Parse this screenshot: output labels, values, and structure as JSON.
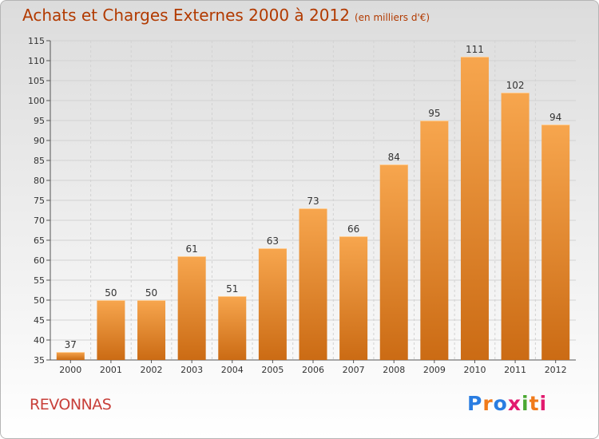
{
  "title": "Achats et Charges Externes 2000 à 2012",
  "unit": "(en milliers d'€)",
  "commune": "REVONNAS",
  "logo": "Proxiti",
  "colors": {
    "title": "#b23a00",
    "bar_light": "#f7a64e",
    "bar_dark": "#cb6b14",
    "commune": "#c8403a",
    "logo_letters": [
      "#2a7de1",
      "#f07a1a",
      "#2a7de1",
      "#e21a6e",
      "#4aa832",
      "#f07a1a",
      "#e21a6e"
    ]
  },
  "chart_data": {
    "type": "bar",
    "categories": [
      "2000",
      "2001",
      "2002",
      "2003",
      "2004",
      "2005",
      "2006",
      "2007",
      "2008",
      "2009",
      "2010",
      "2011",
      "2012"
    ],
    "values": [
      37,
      50,
      50,
      61,
      51,
      63,
      73,
      66,
      84,
      95,
      111,
      102,
      94
    ],
    "ylim": [
      35,
      115
    ],
    "yticks": [
      35,
      40,
      45,
      50,
      55,
      60,
      65,
      70,
      75,
      80,
      85,
      90,
      95,
      100,
      105,
      110,
      115
    ],
    "grid": true
  }
}
